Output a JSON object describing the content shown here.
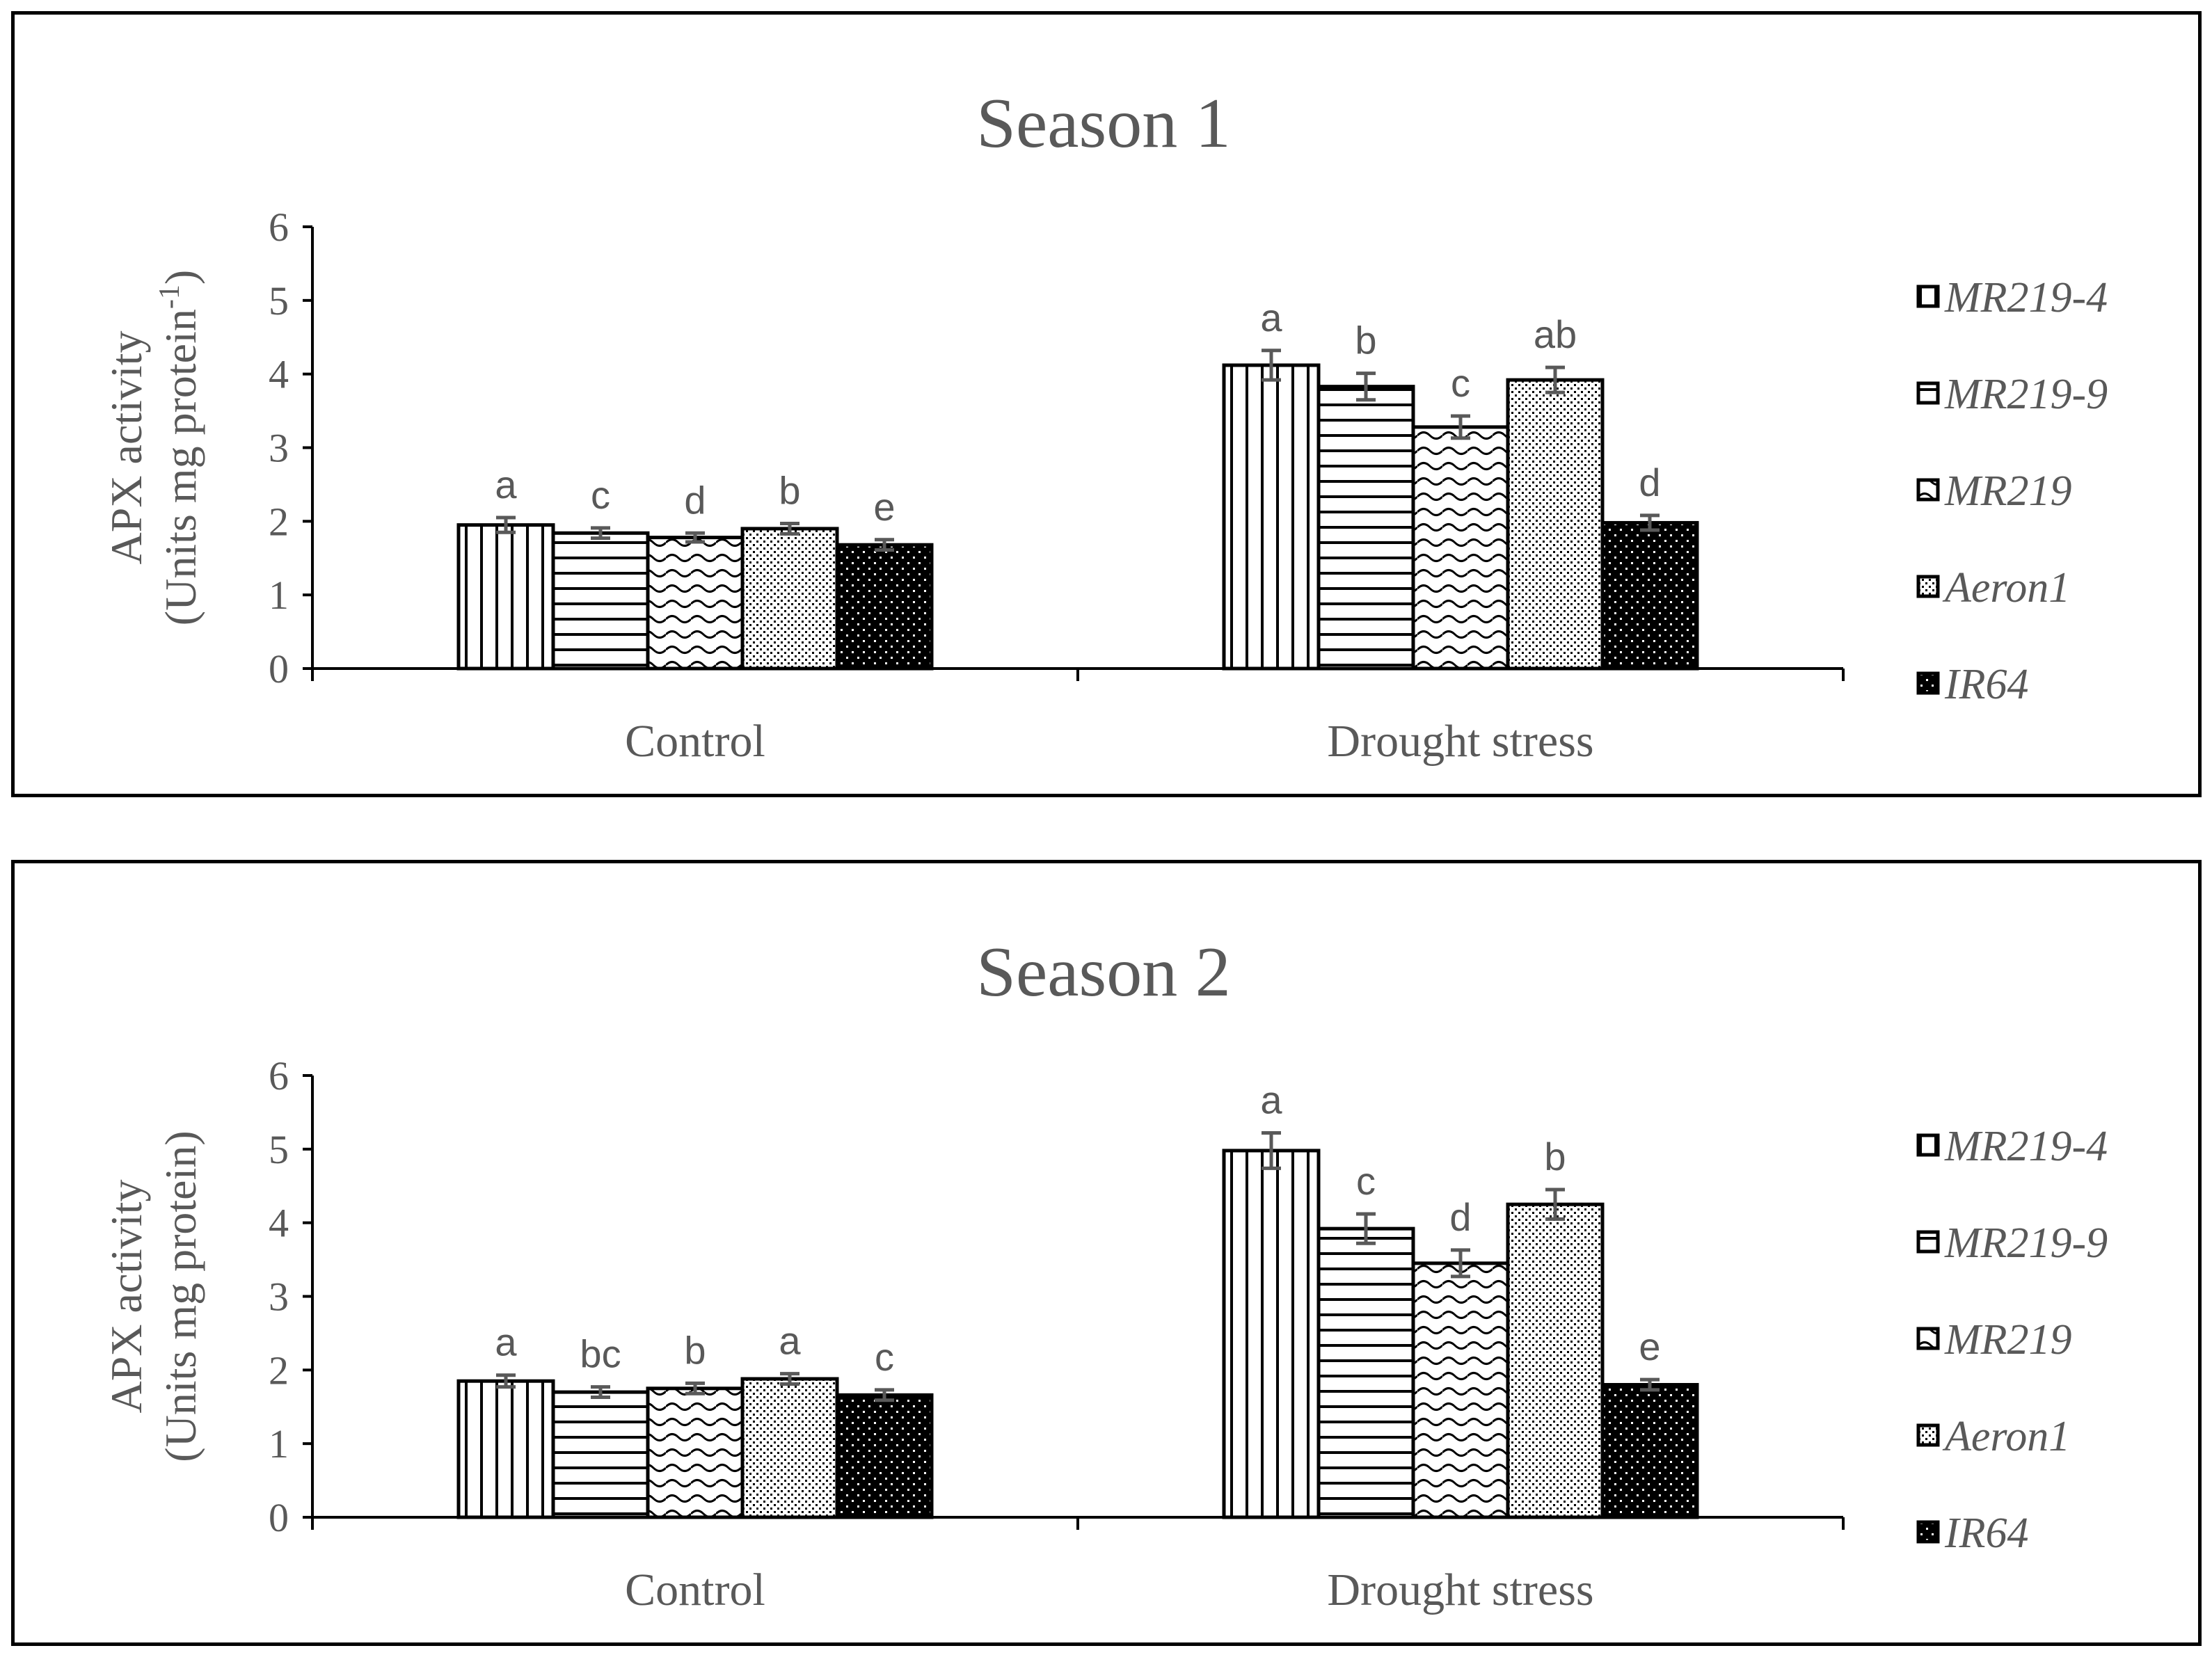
{
  "chart_data": [
    {
      "type": "bar",
      "title": "Season 1",
      "ylabel_line1": "APX activity",
      "ylabel_line2_main": "(Units mg protein",
      "ylabel_line2_sup": "-1",
      "ylabel_line2_end": ")",
      "xlabel": "",
      "ylim": [
        0,
        6
      ],
      "yticks": [
        "0",
        "1",
        "2",
        "3",
        "4",
        "5",
        "6"
      ],
      "categories": [
        "Control",
        "Drought stress"
      ],
      "series": [
        {
          "name": "MR219-4",
          "pattern": "vlines",
          "values": [
            1.95,
            4.12
          ],
          "errors": [
            0.1,
            0.2
          ],
          "letters": [
            "a",
            "a"
          ]
        },
        {
          "name": "MR219-9",
          "pattern": "hlines",
          "values": [
            1.84,
            3.83
          ],
          "errors": [
            0.07,
            0.18
          ],
          "letters": [
            "c",
            "b"
          ]
        },
        {
          "name": "MR219",
          "pattern": "waves",
          "values": [
            1.78,
            3.28
          ],
          "errors": [
            0.06,
            0.15
          ],
          "letters": [
            "d",
            "c"
          ]
        },
        {
          "name": "Aeron1",
          "pattern": "dots",
          "values": [
            1.9,
            3.92
          ],
          "errors": [
            0.07,
            0.17
          ],
          "letters": [
            "b",
            "ab"
          ]
        },
        {
          "name": "IR64",
          "pattern": "black",
          "values": [
            1.68,
            1.98
          ],
          "errors": [
            0.07,
            0.1
          ],
          "letters": [
            "e",
            "d"
          ]
        }
      ]
    },
    {
      "type": "bar",
      "title": "Season 2",
      "ylabel_line1": "APX activity",
      "ylabel_line2_main": "(Units mg protein",
      "ylabel_line2_sup": "",
      "ylabel_line2_end": ")",
      "xlabel": "",
      "ylim": [
        0,
        6
      ],
      "yticks": [
        "0",
        "1",
        "2",
        "3",
        "4",
        "5",
        "6"
      ],
      "categories": [
        "Control",
        "Drought stress"
      ],
      "series": [
        {
          "name": "MR219-4",
          "pattern": "vlines",
          "values": [
            1.85,
            4.98
          ],
          "errors": [
            0.08,
            0.24
          ],
          "letters": [
            "a",
            "a"
          ]
        },
        {
          "name": "MR219-9",
          "pattern": "hlines",
          "values": [
            1.7,
            3.92
          ],
          "errors": [
            0.07,
            0.2
          ],
          "letters": [
            "bc",
            "c"
          ]
        },
        {
          "name": "MR219",
          "pattern": "waves",
          "values": [
            1.75,
            3.45
          ],
          "errors": [
            0.07,
            0.18
          ],
          "letters": [
            "b",
            "d"
          ]
        },
        {
          "name": "Aeron1",
          "pattern": "dots",
          "values": [
            1.88,
            4.25
          ],
          "errors": [
            0.07,
            0.2
          ],
          "letters": [
            "a",
            "b"
          ]
        },
        {
          "name": "IR64",
          "pattern": "black",
          "values": [
            1.66,
            1.8
          ],
          "errors": [
            0.07,
            0.07
          ],
          "letters": [
            "c",
            "e"
          ]
        }
      ]
    }
  ]
}
